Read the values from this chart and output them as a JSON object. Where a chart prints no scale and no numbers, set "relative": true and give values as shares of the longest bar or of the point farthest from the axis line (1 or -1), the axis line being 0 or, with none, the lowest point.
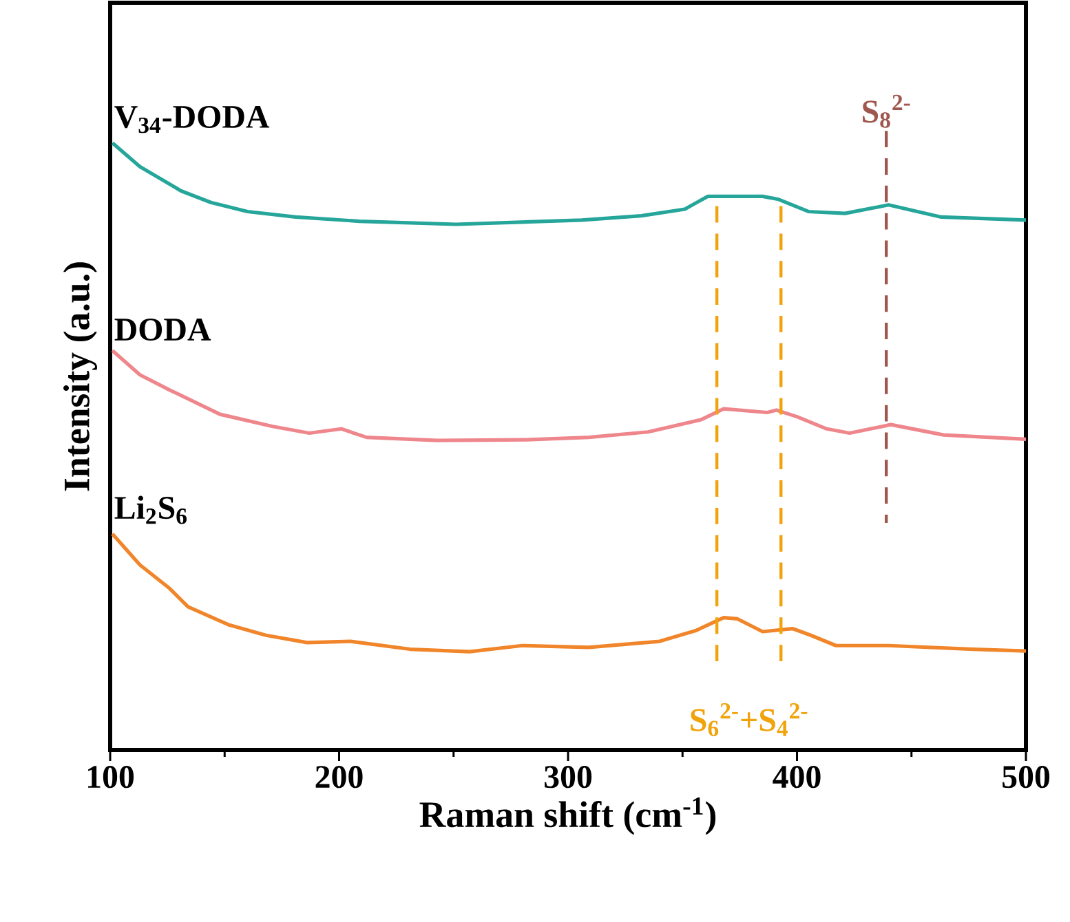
{
  "chart_data": {
    "type": "line",
    "relative": true,
    "xlabel": "Raman shift (cm$^{-1}$)",
    "ylabel": "Intensity (a.u.)",
    "xlim": [
      100,
      500
    ],
    "xticks": [
      100,
      200,
      300,
      400,
      500
    ],
    "grid": false,
    "legend": false,
    "marker": "none",
    "line_style": "solid",
    "series": [
      {
        "name": "V$_{34}$-DODA",
        "color": "#26a69a",
        "x": [
          101,
          113,
          131,
          144,
          160,
          181,
          209,
          251,
          306,
          332,
          351,
          361,
          385,
          392,
          405,
          421,
          440,
          463,
          500
        ],
        "values": [
          1.0,
          0.961,
          0.921,
          0.902,
          0.887,
          0.878,
          0.871,
          0.866,
          0.873,
          0.88,
          0.891,
          0.912,
          0.912,
          0.907,
          0.887,
          0.884,
          0.898,
          0.878,
          0.873
        ]
      },
      {
        "name": "DODA",
        "color": "#ee868c",
        "x": [
          101,
          113,
          126,
          148,
          171,
          187,
          201,
          212,
          243,
          282,
          309,
          335,
          358,
          368,
          387,
          391,
          400,
          413,
          423,
          441,
          464,
          500
        ],
        "values": [
          0.658,
          0.618,
          0.593,
          0.553,
          0.533,
          0.522,
          0.529,
          0.515,
          0.51,
          0.511,
          0.515,
          0.524,
          0.544,
          0.562,
          0.556,
          0.56,
          0.549,
          0.529,
          0.522,
          0.536,
          0.519,
          0.512
        ]
      },
      {
        "name": "Li$_{2}$S$_{6}$",
        "color": "#f0852a",
        "x": [
          101,
          113,
          126,
          134,
          152,
          168,
          186,
          205,
          231,
          257,
          280,
          309,
          340,
          356,
          368,
          374,
          385,
          398,
          406,
          417,
          440,
          477,
          500
        ],
        "values": [
          0.356,
          0.305,
          0.266,
          0.236,
          0.206,
          0.189,
          0.177,
          0.179,
          0.166,
          0.162,
          0.172,
          0.169,
          0.179,
          0.197,
          0.218,
          0.216,
          0.195,
          0.2,
          0.189,
          0.172,
          0.172,
          0.166,
          0.163
        ]
      }
    ],
    "ref_lines": [
      {
        "axis": "x",
        "value": 365,
        "color": "#f0a30a",
        "line_style": "dashed"
      },
      {
        "axis": "x",
        "value": 393,
        "color": "#f0a30a",
        "line_style": "dashed"
      },
      {
        "axis": "x",
        "value": 439,
        "color": "#a0574f",
        "line_style": "dashed",
        "label": "S$_{8}$$^{2-}$"
      }
    ],
    "annotations": [
      "S$_{6}$$^{2-}$+S$_{4}$$^{2-}$"
    ]
  }
}
